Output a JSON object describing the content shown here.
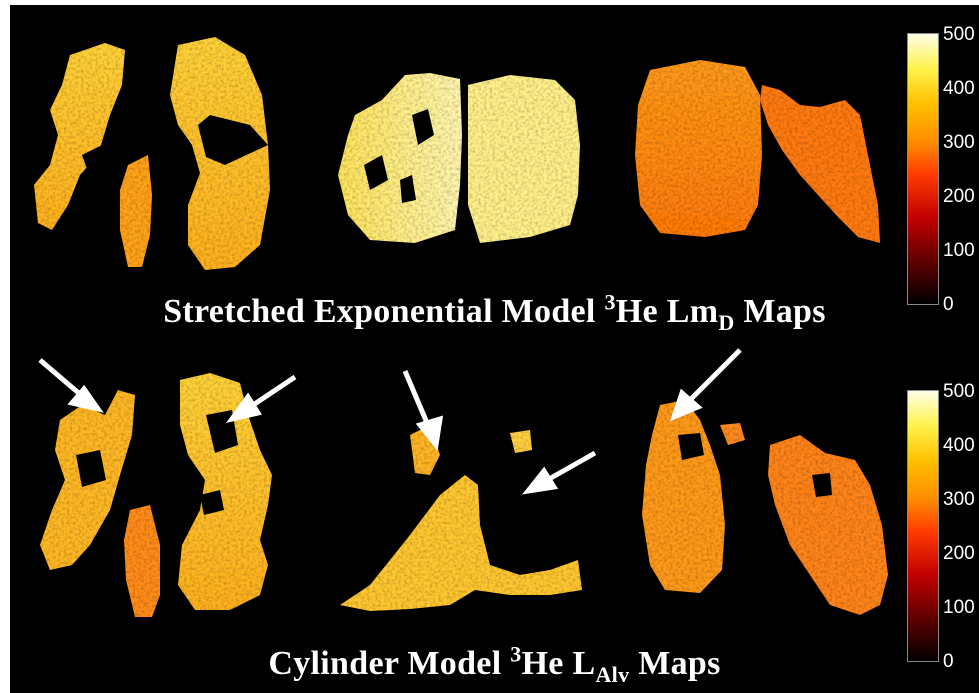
{
  "top_caption": {
    "main": "Stretched Exponential Model ",
    "sup": "3",
    "he": "He Lm",
    "sub": "D",
    "tail": " Maps"
  },
  "bottom_caption": {
    "main": "Cylinder Model ",
    "sup": "3",
    "he": "He L",
    "sub": "Alv",
    "tail": " Maps"
  },
  "colorbar_top": {
    "ticks": [
      "500",
      "400",
      "300",
      "200",
      "100",
      "0"
    ]
  },
  "colorbar_bottom": {
    "ticks": [
      "500",
      "400",
      "300",
      "200",
      "100",
      "0"
    ]
  },
  "colors": {
    "background": "#000000",
    "text": "#ffffff",
    "arrow": "#ffffff"
  }
}
